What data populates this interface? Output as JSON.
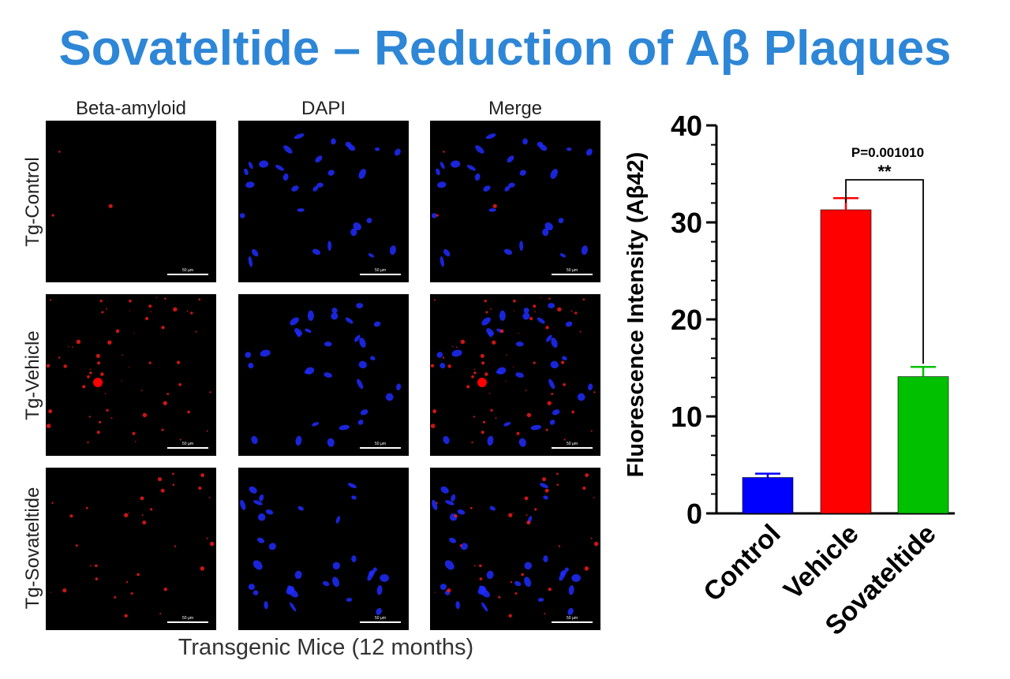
{
  "title": "Sovateltide – Reduction of Aβ Plaques",
  "microscopy": {
    "columns": [
      "Beta-amyloid",
      "DAPI",
      "Merge"
    ],
    "rows": [
      "Tg-Control",
      "Tg-Vehicle",
      "Tg-Sovateltide"
    ],
    "scale_label": "50 µm",
    "footer": "Transgenic Mice (12 months)"
  },
  "chart_data": {
    "type": "bar",
    "categories": [
      "Control",
      "Vehicle",
      "Sovateltide"
    ],
    "values": [
      3.7,
      31.3,
      14.1
    ],
    "error": [
      0.4,
      1.2,
      1.0
    ],
    "colors": [
      "#0000ff",
      "#ff0000",
      "#00c000"
    ],
    "ylabel": "Fluorescence Intensity (Aβ42)",
    "ylim": [
      0,
      40
    ],
    "yticks": [
      0,
      10,
      20,
      30,
      40
    ],
    "annotation": {
      "from": "Vehicle",
      "to": "Sovateltide",
      "p_text": "P=0.001010",
      "stars": "**"
    },
    "grid": false
  }
}
